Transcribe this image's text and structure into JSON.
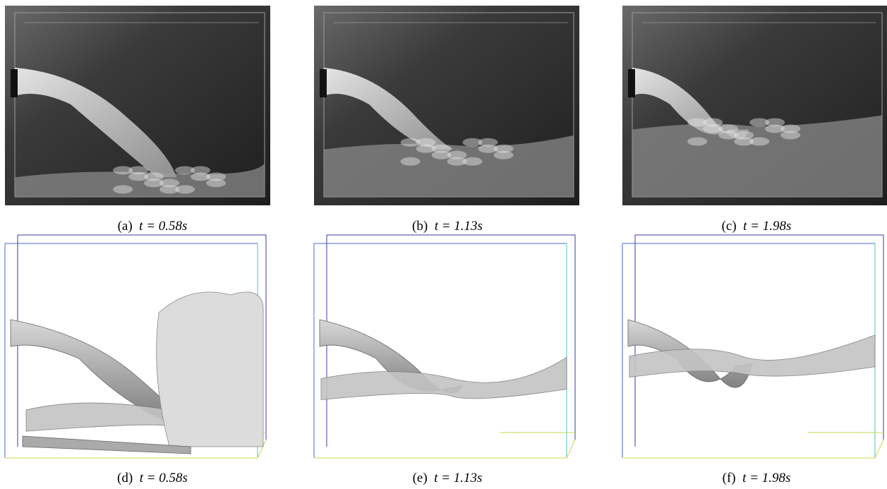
{
  "figure": {
    "panels": [
      {
        "label": "(a)",
        "math": "t = 0.58s"
      },
      {
        "label": "(b)",
        "math": "t = 1.13s"
      },
      {
        "label": "(c)",
        "math": "t = 1.98s"
      },
      {
        "label": "(d)",
        "math": "t = 0.58s"
      },
      {
        "label": "(e)",
        "math": "t = 1.13s"
      },
      {
        "label": "(f)",
        "math": "t = 1.98s"
      }
    ]
  }
}
